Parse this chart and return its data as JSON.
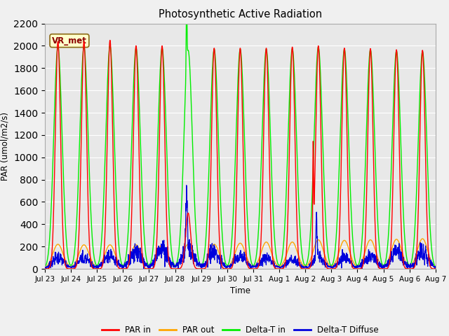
{
  "title": "Photosynthetic Active Radiation",
  "ylabel": "PAR (umol/m2/s)",
  "xlabel": "Time",
  "annotation": "VR_met",
  "ylim": [
    0,
    2200
  ],
  "fig_bg": "#f0f0f0",
  "plot_bg": "#e8e8e8",
  "grid_color": "#ffffff",
  "tick_labels": [
    "Jul 23",
    "Jul 24",
    "Jul 25",
    "Jul 26",
    "Jul 27",
    "Jul 28",
    "Jul 29",
    "Jul 30",
    "Jul 31",
    "Aug 1",
    "Aug 2",
    "Aug 3",
    "Aug 4",
    "Aug 5",
    "Aug 6",
    "Aug 7"
  ],
  "colors": {
    "PAR in": "#ff0000",
    "PAR out": "#ffa500",
    "Delta-T in": "#00ee00",
    "Delta-T Diffuse": "#0000dd"
  },
  "legend_labels": [
    "PAR in",
    "PAR out",
    "Delta-T in",
    "Delta-T Diffuse"
  ],
  "par_in_peaks": [
    2040,
    2040,
    2050,
    2000,
    2000,
    500,
    1980,
    1980,
    1980,
    1990,
    2000,
    1980,
    1975,
    1965,
    1960
  ],
  "par_out_peaks": [
    220,
    215,
    215,
    215,
    215,
    220,
    220,
    230,
    240,
    240,
    260,
    255,
    260,
    265,
    270
  ],
  "delta_in_peaks": [
    1990,
    1990,
    2000,
    1980,
    1980,
    1960,
    1970,
    1970,
    1970,
    1975,
    1990,
    1970,
    1965,
    1955,
    1950
  ],
  "diff_base_peaks": [
    100,
    100,
    120,
    150,
    170,
    180,
    150,
    120,
    100,
    80,
    100,
    100,
    120,
    150,
    150
  ]
}
